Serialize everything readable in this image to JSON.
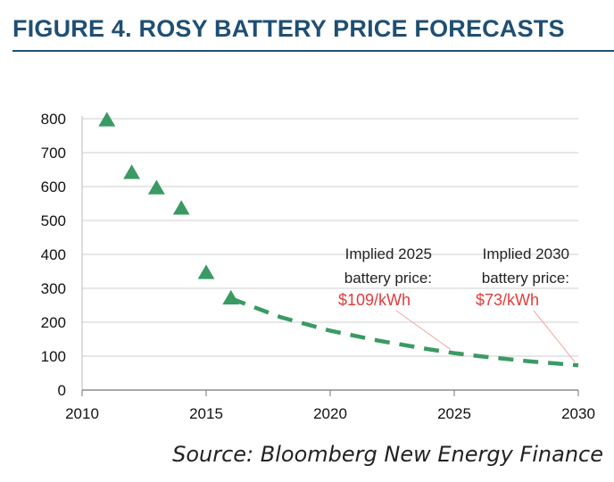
{
  "title": "FIGURE 4. ROSY BATTERY PRICE FORECASTS",
  "source": "Source: Bloomberg New Energy Finance",
  "colors": {
    "title": "#1f4f74",
    "series": "#3a9a63",
    "annotation_price": "#e23b3b",
    "leader": "#f2a6a6"
  },
  "chart_data": {
    "type": "scatter",
    "xlim": [
      2010,
      2030
    ],
    "ylim": [
      0,
      800
    ],
    "xticks": [
      2010,
      2015,
      2020,
      2025,
      2030
    ],
    "yticks": [
      0,
      100,
      200,
      300,
      400,
      500,
      600,
      700,
      800
    ],
    "grid": "horizontal",
    "series": [
      {
        "style": "triangle-markers",
        "x": [
          2011,
          2012,
          2013,
          2014,
          2015,
          2016
        ],
        "y": [
          795,
          640,
          595,
          535,
          345,
          270
        ]
      },
      {
        "style": "dashed-line",
        "x": [
          2016,
          2018,
          2020,
          2022,
          2024,
          2025,
          2026,
          2028,
          2030
        ],
        "y": [
          270,
          215,
          175,
          145,
          120,
          109,
          100,
          85,
          73
        ]
      }
    ],
    "annotations": [
      {
        "line1": "Implied 2025",
        "line2": "battery price:",
        "price": "$109/kWh",
        "x": 2025,
        "y": 109
      },
      {
        "line1": "Implied 2030",
        "line2": "battery price:",
        "price": "$73/kWh",
        "x": 2030,
        "y": 73
      }
    ]
  }
}
